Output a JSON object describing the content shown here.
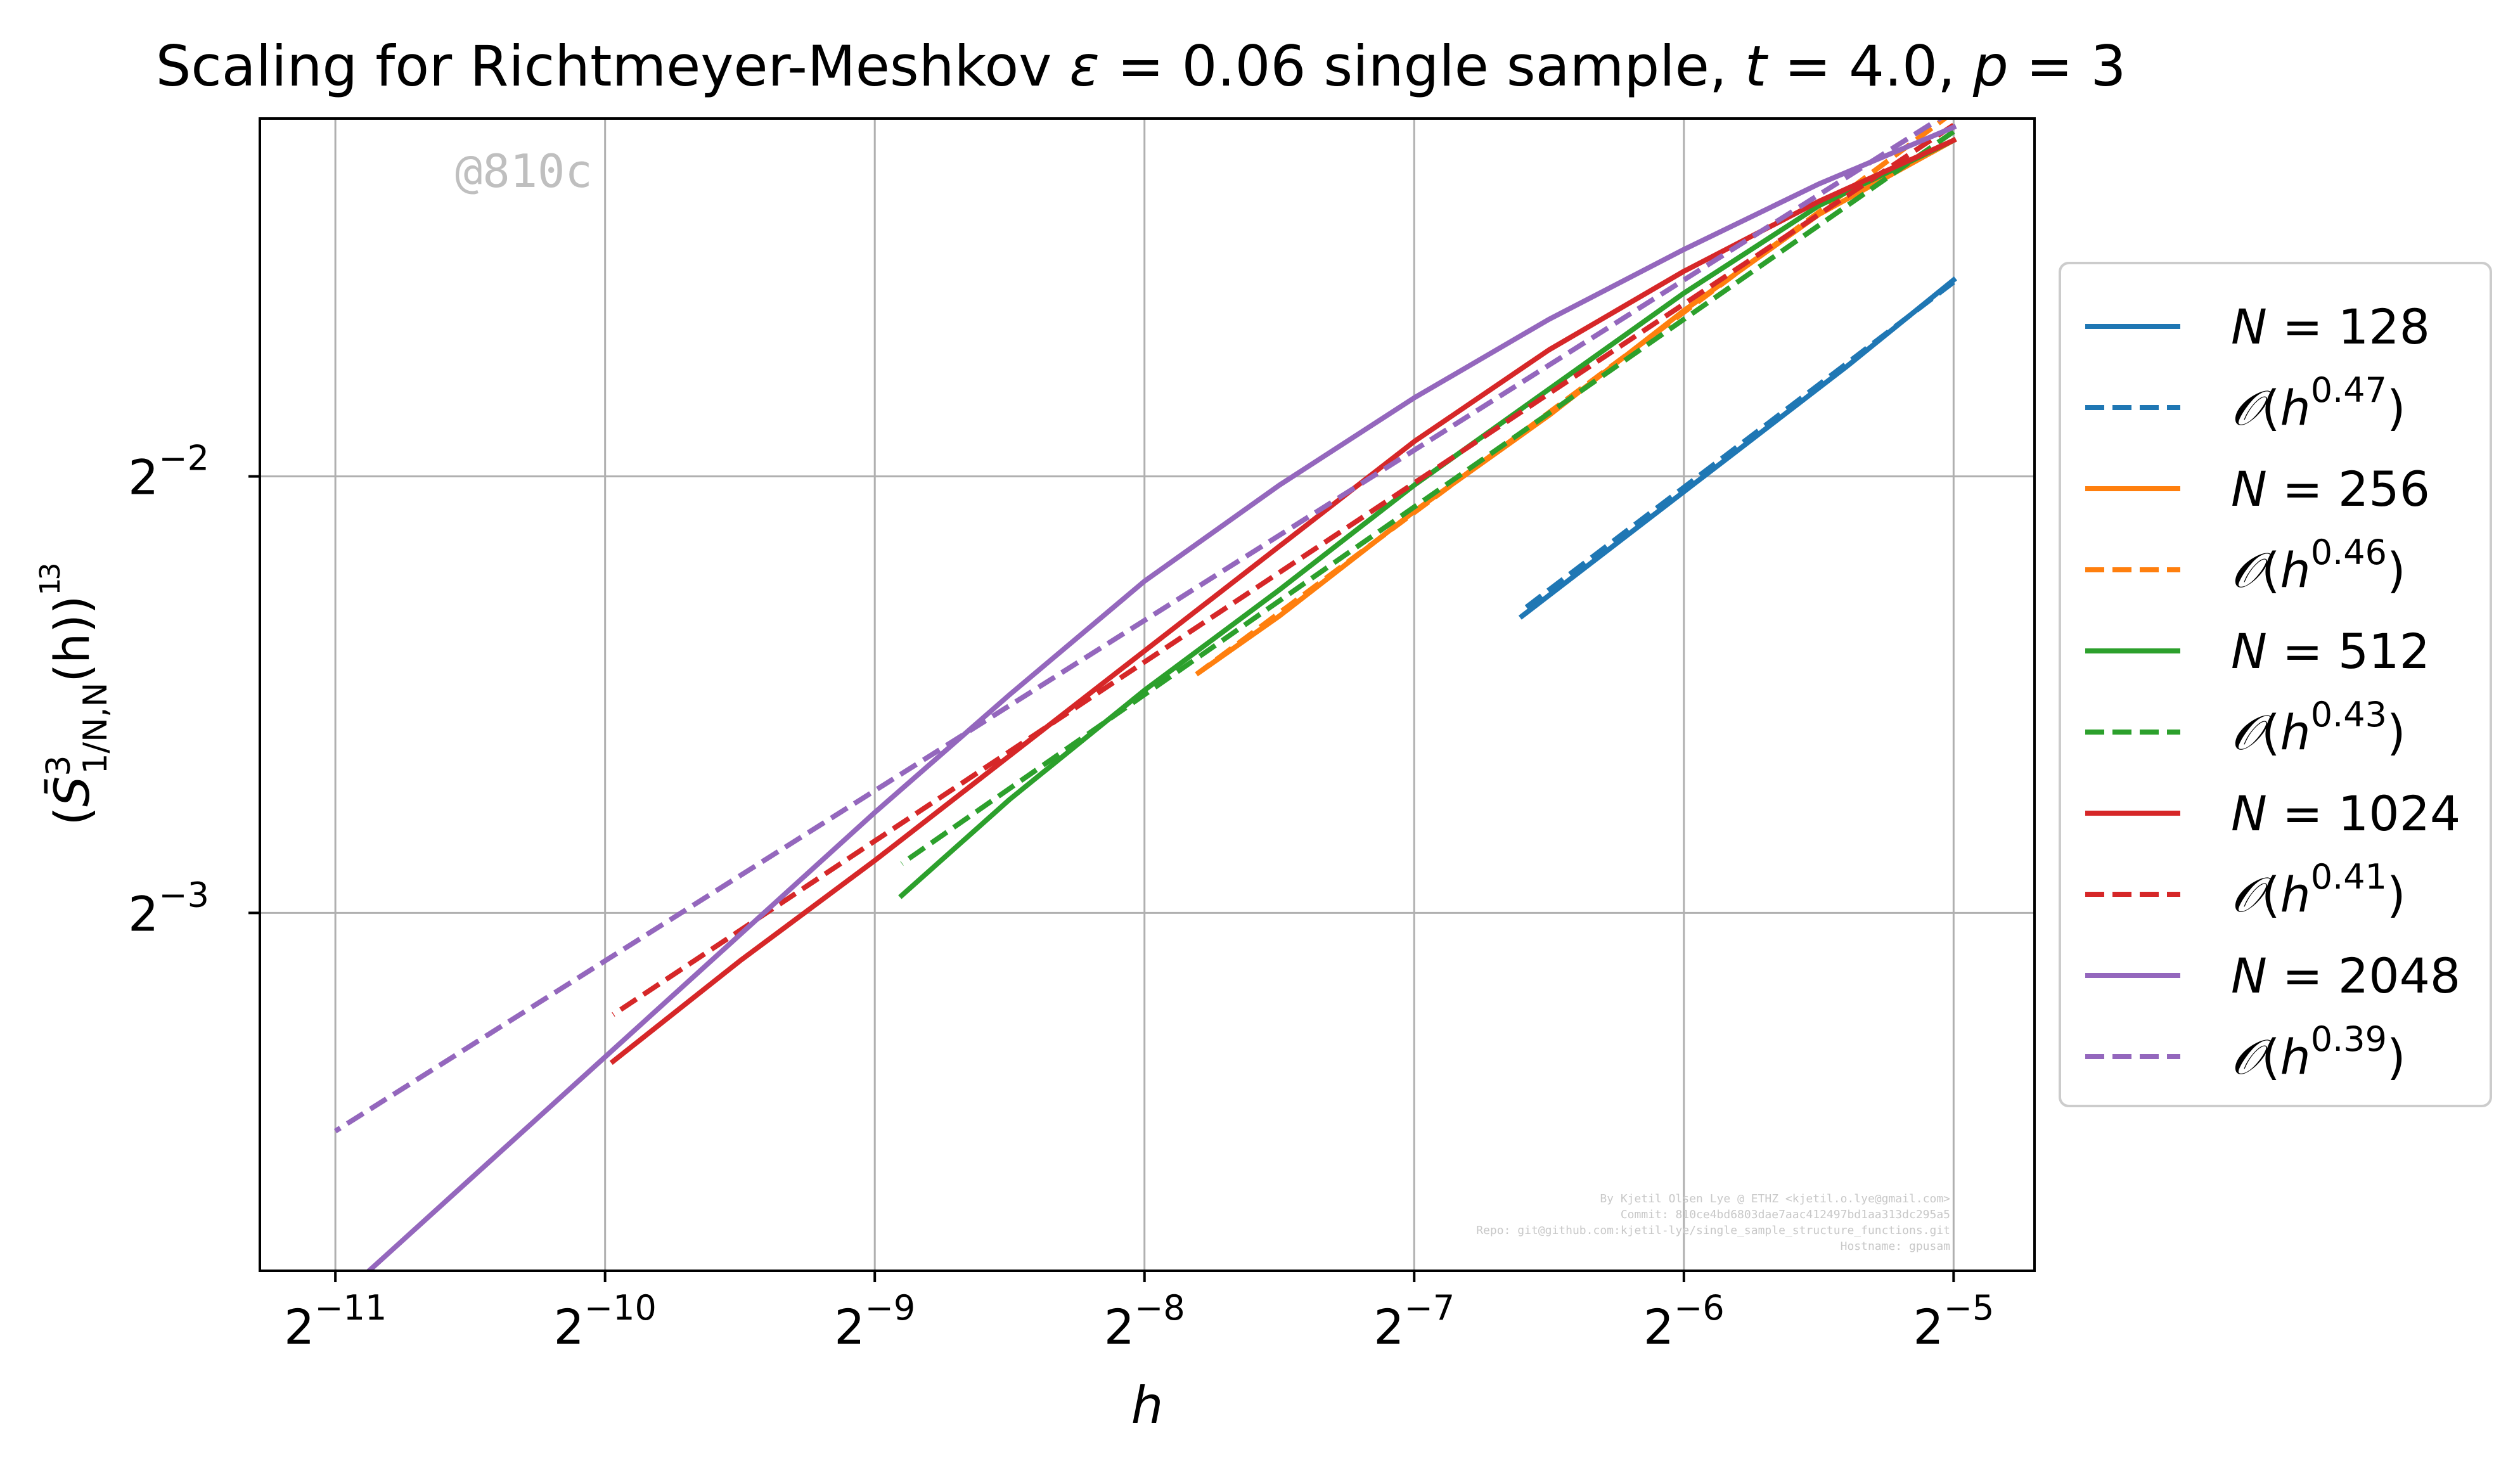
{
  "chart_data": {
    "type": "line",
    "title": "Scaling for Richtmeyer-Meshkov ε = 0.06 single sample, t = 4.0, p = 3",
    "xlabel": "h",
    "ylabel": "(S̄³₁/N,N(h))^(1/3)",
    "xscale": "log2",
    "yscale": "log2",
    "xlim_log2": [
      -11.28,
      -4.7
    ],
    "ylim_log2": [
      -3.82,
      -1.18
    ],
    "x_ticks": [
      {
        "exp": -11,
        "base": "2",
        "sup": "−11"
      },
      {
        "exp": -10,
        "base": "2",
        "sup": "−10"
      },
      {
        "exp": -9,
        "base": "2",
        "sup": "−9"
      },
      {
        "exp": -8,
        "base": "2",
        "sup": "−8"
      },
      {
        "exp": -7,
        "base": "2",
        "sup": "−7"
      },
      {
        "exp": -6,
        "base": "2",
        "sup": "−6"
      },
      {
        "exp": -5,
        "base": "2",
        "sup": "−5"
      }
    ],
    "y_ticks": [
      {
        "exp": -2,
        "base": "2",
        "sup": "−2"
      },
      {
        "exp": -3,
        "base": "2",
        "sup": "−3"
      }
    ],
    "grid": true,
    "legend_position": "right-outside",
    "series": [
      {
        "name": "N = 128",
        "style": "solid",
        "color": "#1f77b4",
        "x_log2": [
          -5.0,
          -5.4,
          -5.8,
          -6.2,
          -6.6
        ],
        "y_log2": [
          -1.55,
          -1.75,
          -1.94,
          -2.13,
          -2.32
        ]
      },
      {
        "name": "𝒪(h^0.47)",
        "style": "dashed",
        "color": "#1f77b4",
        "x_log2": [
          -5.0,
          -6.6
        ],
        "y_log2": [
          -1.555,
          -2.307
        ]
      },
      {
        "name": "N = 256",
        "style": "solid",
        "color": "#ff7f0e",
        "x_log2": [
          -5.0,
          -5.5,
          -6.0,
          -6.5,
          -7.0,
          -7.5,
          -7.8
        ],
        "y_log2": [
          -1.23,
          -1.4,
          -1.62,
          -1.86,
          -2.08,
          -2.32,
          -2.45
        ]
      },
      {
        "name": "𝒪(h^0.46)",
        "style": "dashed",
        "color": "#ff7f0e",
        "x_log2": [
          -5.0,
          -7.8
        ],
        "y_log2": [
          -1.165,
          -2.45
        ]
      },
      {
        "name": "N = 512",
        "style": "solid",
        "color": "#2ca02c",
        "x_log2": [
          -5.0,
          -5.5,
          -6.0,
          -6.5,
          -7.0,
          -7.5,
          -8.0,
          -8.5,
          -8.9
        ],
        "y_log2": [
          -1.23,
          -1.38,
          -1.58,
          -1.8,
          -2.02,
          -2.26,
          -2.49,
          -2.74,
          -2.96
        ]
      },
      {
        "name": "𝒪(h^0.43)",
        "style": "dashed",
        "color": "#2ca02c",
        "x_log2": [
          -5.0,
          -8.9
        ],
        "y_log2": [
          -1.21,
          -2.887
        ]
      },
      {
        "name": "N = 1024",
        "style": "solid",
        "color": "#d62728",
        "x_log2": [
          -5.0,
          -5.5,
          -6.0,
          -6.5,
          -7.0,
          -7.5,
          -8.0,
          -8.5,
          -9.0,
          -9.5,
          -9.97
        ],
        "y_log2": [
          -1.23,
          -1.37,
          -1.53,
          -1.71,
          -1.92,
          -2.16,
          -2.4,
          -2.64,
          -2.88,
          -3.11,
          -3.34
        ]
      },
      {
        "name": "𝒪(h^0.41)",
        "style": "dashed",
        "color": "#d62728",
        "x_log2": [
          -5.0,
          -9.97
        ],
        "y_log2": [
          -1.195,
          -3.233
        ]
      },
      {
        "name": "N = 2048",
        "style": "solid",
        "color": "#9467bd",
        "x_log2": [
          -5.0,
          -5.5,
          -6.0,
          -6.5,
          -7.0,
          -7.5,
          -8.0,
          -8.5,
          -9.0,
          -9.5,
          -10.0,
          -10.5,
          -11.0
        ],
        "y_log2": [
          -1.2,
          -1.33,
          -1.48,
          -1.64,
          -1.82,
          -2.02,
          -2.24,
          -2.5,
          -2.77,
          -3.05,
          -3.33,
          -3.61,
          -3.89
        ]
      },
      {
        "name": "𝒪(h^0.39)",
        "style": "dashed",
        "color": "#9467bd",
        "x_log2": [
          -5.0,
          -11.0
        ],
        "y_log2": [
          -1.16,
          -3.5
        ]
      }
    ],
    "legend": [
      {
        "kind": "N",
        "value": "128",
        "style": "solid",
        "color": "#1f77b4"
      },
      {
        "kind": "O",
        "value": "0.47",
        "style": "dashed",
        "color": "#1f77b4"
      },
      {
        "kind": "N",
        "value": "256",
        "style": "solid",
        "color": "#ff7f0e"
      },
      {
        "kind": "O",
        "value": "0.46",
        "style": "dashed",
        "color": "#ff7f0e"
      },
      {
        "kind": "N",
        "value": "512",
        "style": "solid",
        "color": "#2ca02c"
      },
      {
        "kind": "O",
        "value": "0.43",
        "style": "dashed",
        "color": "#2ca02c"
      },
      {
        "kind": "N",
        "value": "1024",
        "style": "solid",
        "color": "#d62728"
      },
      {
        "kind": "O",
        "value": "0.41",
        "style": "dashed",
        "color": "#d62728"
      },
      {
        "kind": "N",
        "value": "2048",
        "style": "solid",
        "color": "#9467bd"
      },
      {
        "kind": "O",
        "value": "0.39",
        "style": "dashed",
        "color": "#9467bd"
      }
    ]
  },
  "title_parts": {
    "prefix": "Scaling for Richtmeyer-Meshkov ",
    "eps": "ε",
    "eps_value": " = 0.06 single sample, ",
    "t": "t",
    "t_value": " = 4.0, ",
    "p": "p",
    "p_value": " = 3"
  },
  "axis_labels": {
    "x": "h",
    "y_open": "(",
    "y_S": "S̄",
    "y_sup": "3",
    "y_sub": "1/N,N",
    "y_arg": "(h)",
    "y_close": ")",
    "y_pow_num": "1",
    "y_pow_den": "3"
  },
  "legend_tokens": {
    "n_symbol": "N",
    "equals": " = ",
    "o_symbol": "𝒪",
    "o_open": "(",
    "h": "h",
    "o_close": ")"
  },
  "watermark": "@810c",
  "credits": [
    "By Kjetil Olsen Lye @ ETHZ <kjetil.o.lye@gmail.com>",
    "Commit: 810ce4bd6803dae7aac412497bd1aa313dc295a5",
    "Repo: git@github.com:kjetil-lye/single_sample_structure_functions.git",
    "Hostname: gpusam"
  ]
}
